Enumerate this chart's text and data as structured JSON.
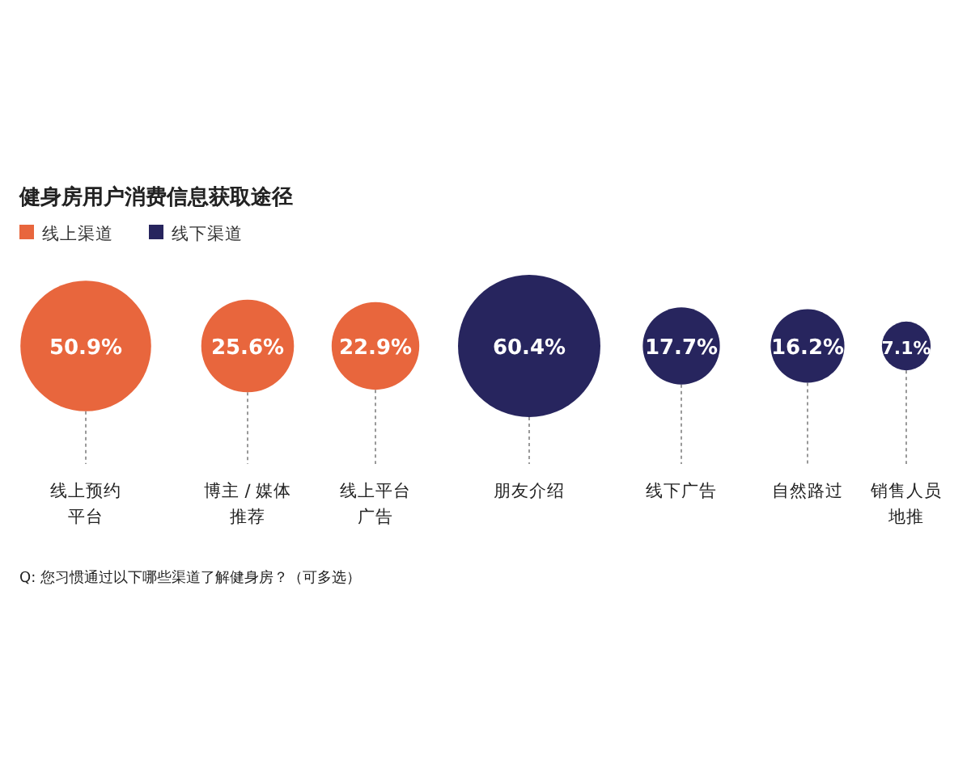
{
  "chart_data": {
    "type": "other",
    "title": "健身房用户消费信息获取途径",
    "categories": [
      "线上预约平台",
      "博主 / 媒体推荐",
      "线上平台广告",
      "朋友介绍",
      "线下广告",
      "自然路过",
      "销售人员地推"
    ],
    "series": [
      {
        "name": "线上渠道",
        "color": "#e8663d",
        "values": [
          50.9,
          25.6,
          22.9,
          null,
          null,
          null,
          null
        ],
        "value_labels": [
          "50.9%",
          "25.6%",
          "22.9%",
          null,
          null,
          null,
          null
        ]
      },
      {
        "name": "线下渠道",
        "color": "#27255e",
        "values": [
          null,
          null,
          null,
          60.4,
          17.7,
          16.2,
          7.1
        ],
        "value_labels": [
          null,
          null,
          null,
          "60.4%",
          "17.7%",
          "16.2%",
          "7.1%"
        ]
      }
    ],
    "legend": "top left",
    "annotations": [
      "Q: 您习惯通过以下哪些渠道了解健身房？（可多选）"
    ]
  }
}
